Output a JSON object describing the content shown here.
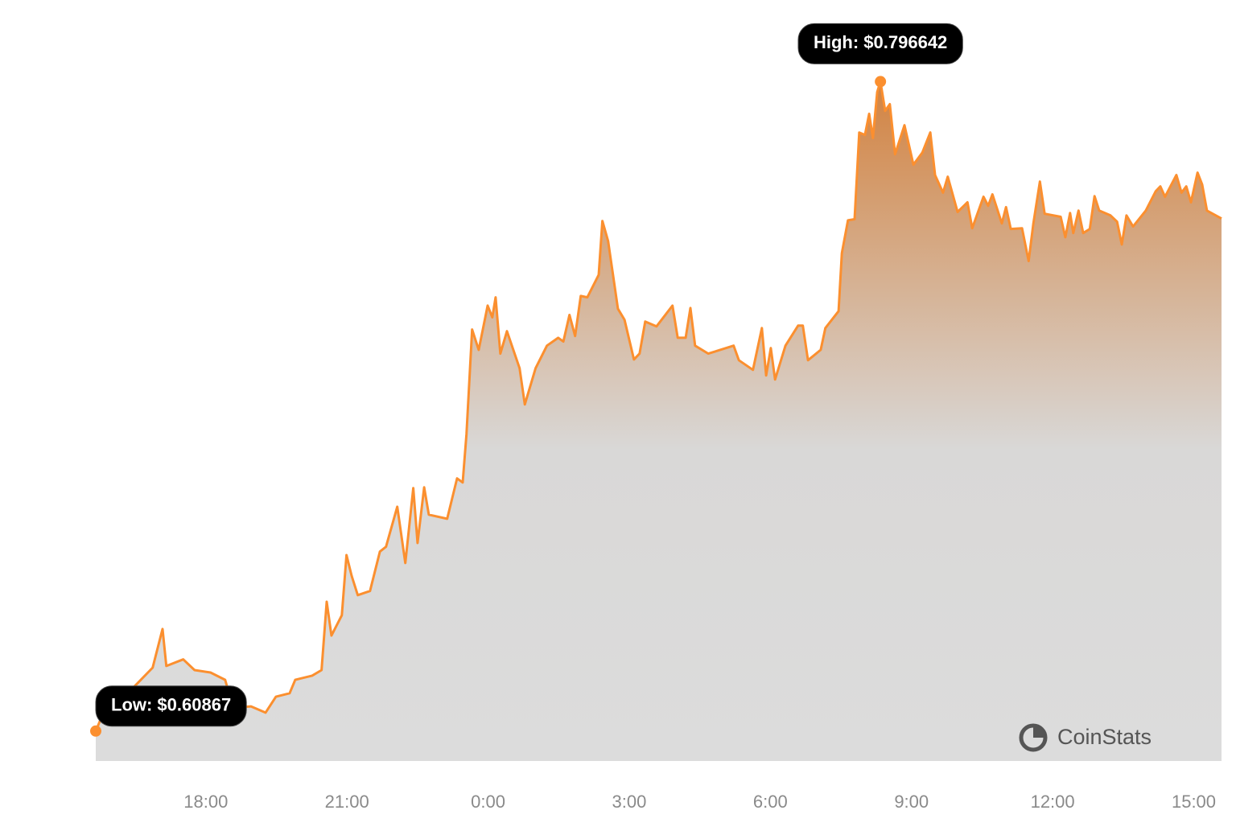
{
  "chart_data": {
    "type": "area",
    "high_label": "High: $0.796642",
    "low_label": "Low: $0.60867",
    "watermark": "CoinStats",
    "color": "#fb8f2f",
    "xlim": [
      15.66,
      39.59
    ],
    "ylim": [
      0.6,
      0.8
    ],
    "xticks": [
      {
        "value": 18,
        "label": "18:00"
      },
      {
        "value": 21,
        "label": "21:00"
      },
      {
        "value": 24,
        "label": "0:00"
      },
      {
        "value": 27,
        "label": "3:00"
      },
      {
        "value": 30,
        "label": "6:00"
      },
      {
        "value": 33,
        "label": "9:00"
      },
      {
        "value": 36,
        "label": "12:00"
      },
      {
        "value": 39,
        "label": "15:00"
      }
    ],
    "x": [
      15.66,
      16.02,
      16.44,
      16.87,
      17.08,
      17.16,
      17.52,
      17.76,
      18.1,
      18.41,
      18.58,
      18.96,
      19.27,
      19.49,
      19.78,
      19.9,
      20.26,
      20.46,
      20.57,
      20.67,
      20.89,
      20.99,
      21.1,
      21.23,
      21.49,
      21.7,
      21.83,
      22.07,
      22.24,
      22.41,
      22.5,
      22.64,
      22.74,
      23.13,
      23.34,
      23.46,
      23.54,
      23.66,
      23.8,
      23.99,
      24.09,
      24.16,
      24.26,
      24.4,
      24.67,
      24.78,
      25.01,
      25.25,
      25.49,
      25.6,
      25.73,
      25.85,
      25.97,
      26.11,
      26.35,
      26.43,
      26.55,
      26.76,
      26.9,
      27.1,
      27.22,
      27.34,
      27.58,
      27.92,
      28.03,
      28.2,
      28.3,
      28.4,
      28.68,
      29.22,
      29.33,
      29.63,
      29.82,
      29.91,
      30.01,
      30.1,
      30.32,
      30.59,
      30.69,
      30.8,
      31.07,
      31.17,
      31.45,
      31.52,
      31.65,
      31.79,
      31.89,
      32.01,
      32.1,
      32.18,
      32.27,
      32.34,
      32.44,
      32.54,
      32.65,
      32.85,
      33.04,
      33.23,
      33.4,
      33.5,
      33.67,
      33.77,
      33.98,
      34.19,
      34.29,
      34.53,
      34.63,
      34.72,
      34.92,
      35.01,
      35.11,
      35.35,
      35.49,
      35.59,
      35.73,
      35.83,
      36.17,
      36.27,
      36.37,
      36.44,
      36.55,
      36.65,
      36.79,
      36.89,
      36.99,
      37.23,
      37.37,
      37.47,
      37.57,
      37.71,
      37.98,
      38.19,
      38.29,
      38.39,
      38.63,
      38.74,
      38.84,
      38.94,
      39.08,
      39.18,
      39.28,
      39.59
    ],
    "values": [
      0.60867,
      0.6205,
      0.621,
      0.627,
      0.6382,
      0.6275,
      0.6294,
      0.6263,
      0.6256,
      0.6235,
      0.6154,
      0.6158,
      0.614,
      0.6186,
      0.6196,
      0.6235,
      0.6247,
      0.6263,
      0.6461,
      0.6363,
      0.6422,
      0.6596,
      0.6536,
      0.648,
      0.6492,
      0.6606,
      0.662,
      0.6736,
      0.6573,
      0.679,
      0.6631,
      0.6792,
      0.6713,
      0.6701,
      0.6818,
      0.6806,
      0.6946,
      0.7249,
      0.719,
      0.7318,
      0.7284,
      0.7342,
      0.7179,
      0.7244,
      0.7137,
      0.7032,
      0.7137,
      0.7202,
      0.7225,
      0.7214,
      0.7291,
      0.723,
      0.7346,
      0.7342,
      0.7407,
      0.7563,
      0.7505,
      0.7309,
      0.7277,
      0.7162,
      0.7179,
      0.7272,
      0.7258,
      0.7318,
      0.7225,
      0.7225,
      0.7311,
      0.7202,
      0.7179,
      0.7202,
      0.716,
      0.7132,
      0.7253,
      0.7116,
      0.7195,
      0.7104,
      0.7202,
      0.726,
      0.726,
      0.716,
      0.719,
      0.7253,
      0.7302,
      0.747,
      0.7565,
      0.7568,
      0.7819,
      0.7812,
      0.7873,
      0.7803,
      0.7936,
      0.796642,
      0.7882,
      0.7901,
      0.7756,
      0.784,
      0.7726,
      0.7761,
      0.7819,
      0.7696,
      0.7645,
      0.7691,
      0.7589,
      0.7617,
      0.7542,
      0.7633,
      0.7607,
      0.764,
      0.7556,
      0.7603,
      0.754,
      0.7542,
      0.7447,
      0.7556,
      0.7677,
      0.7584,
      0.7575,
      0.7516,
      0.7586,
      0.7528,
      0.7593,
      0.7528,
      0.754,
      0.7635,
      0.7593,
      0.7579,
      0.7561,
      0.7495,
      0.7579,
      0.7547,
      0.7593,
      0.7649,
      0.7663,
      0.7633,
      0.7696,
      0.7645,
      0.7663,
      0.7617,
      0.7703,
      0.7668,
      0.7593,
      0.757
    ]
  }
}
